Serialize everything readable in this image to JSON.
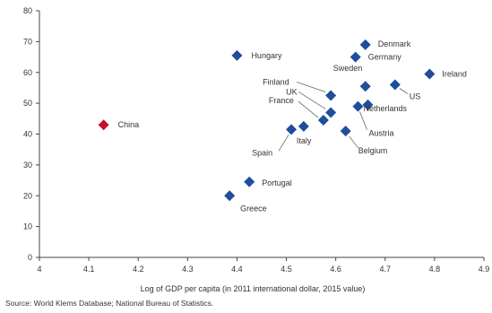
{
  "chart_data": {
    "type": "scatter",
    "title": "",
    "xlabel": "Log of GDP per capita (in 2011 international dollar, 2015 value)",
    "ylabel": "",
    "xlim": [
      4,
      4.9
    ],
    "ylim": [
      0,
      80
    ],
    "xticks": [
      "4",
      "4.1",
      "4.2",
      "4.3",
      "4.4",
      "4.5",
      "4.6",
      "4.7",
      "4.8",
      "4.9"
    ],
    "yticks": [
      "0",
      "10",
      "20",
      "30",
      "40",
      "50",
      "60",
      "70",
      "80"
    ],
    "colors": {
      "default": "#1f4e9c",
      "highlight": "#c8102e"
    },
    "points": [
      {
        "label": "Hungary",
        "x": 4.4,
        "y": 65.5,
        "color": "#1f4e9c"
      },
      {
        "label": "Denmark",
        "x": 4.66,
        "y": 69.0,
        "color": "#1f4e9c"
      },
      {
        "label": "Germany",
        "x": 4.64,
        "y": 65.0,
        "color": "#1f4e9c"
      },
      {
        "label": "Ireland",
        "x": 4.79,
        "y": 59.5,
        "color": "#1f4e9c"
      },
      {
        "label": "Sweden",
        "x": 4.66,
        "y": 55.5,
        "color": "#1f4e9c"
      },
      {
        "label": "US",
        "x": 4.72,
        "y": 56.0,
        "color": "#1f4e9c"
      },
      {
        "label": "Finland",
        "x": 4.59,
        "y": 52.5,
        "color": "#1f4e9c"
      },
      {
        "label": "UK",
        "x": 4.59,
        "y": 47.0,
        "color": "#1f4e9c"
      },
      {
        "label": "Netherlands",
        "x": 4.665,
        "y": 49.5,
        "color": "#1f4e9c"
      },
      {
        "label": "Austria",
        "x": 4.645,
        "y": 49.0,
        "color": "#1f4e9c"
      },
      {
        "label": "France",
        "x": 4.575,
        "y": 44.5,
        "color": "#1f4e9c"
      },
      {
        "label": "China",
        "x": 4.13,
        "y": 43.0,
        "color": "#c8102e"
      },
      {
        "label": "Spain",
        "x": 4.51,
        "y": 41.5,
        "color": "#1f4e9c"
      },
      {
        "label": "Italy",
        "x": 4.535,
        "y": 42.5,
        "color": "#1f4e9c"
      },
      {
        "label": "Belgium",
        "x": 4.62,
        "y": 41.0,
        "color": "#1f4e9c"
      },
      {
        "label": "Portugal",
        "x": 4.425,
        "y": 24.5,
        "color": "#1f4e9c"
      },
      {
        "label": "Greece",
        "x": 4.385,
        "y": 20.0,
        "color": "#1f4e9c"
      }
    ]
  },
  "source": "Source: World Klems Database; National Bureau of Statistics."
}
